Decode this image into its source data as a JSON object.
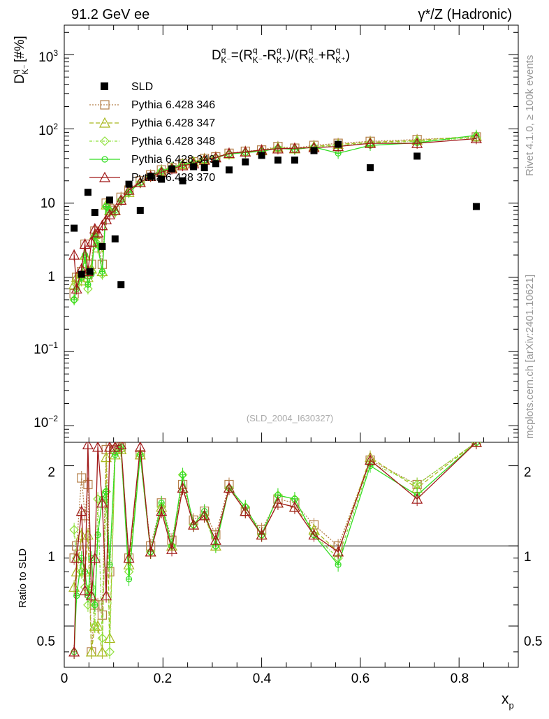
{
  "chart_data": {
    "type": "scatter",
    "title_left": "91.2 GeV ee",
    "title_right": "γ*/Z (Hadronic)",
    "formula": {
      "lhs": "D",
      "lhs_sup": "q",
      "lhs_sub": "K⁻",
      "eq": "=(R",
      "r_sup": "q",
      "r1_sub": "K⁻",
      "minus": "-R",
      "r2_sub": "K⁺",
      "mid": ")/(R",
      "plus": "+R",
      "close": ")"
    },
    "ylabel": {
      "main": "D",
      "sup": "q",
      "sub": "K⁻",
      "unit": "[#%]"
    },
    "xlabel": {
      "main": "x",
      "sub": "p"
    },
    "ratio_ylabel": "Ratio to SLD",
    "side_label_top": "Rivet 4.1.0, ≥ 100k events",
    "side_label_bottom": "mcplots.cern.ch [arXiv:2401.10621]",
    "watermark": "(SLD_2004_I630327)",
    "xlim": [
      0,
      0.92
    ],
    "ylim_main_log": [
      0.006,
      2500
    ],
    "ylim_ratio_log": [
      0.35,
      2.45
    ],
    "x_ticks": [
      "0",
      "0.2",
      "0.4",
      "0.6",
      "0.8"
    ],
    "main_tick_labels": {
      "t10": "10",
      "t1": "1",
      "base": "10"
    },
    "ratio_ticks": [
      "0.5",
      "1",
      "2"
    ],
    "legend": {
      "data": "SLD",
      "mc": [
        "Pythia 6.428 346",
        "Pythia 6.428 347",
        "Pythia 6.428 348",
        "Pythia 6.428 349",
        "Pythia 6.428 370"
      ]
    },
    "sld": {
      "x": [
        0.02,
        0.035,
        0.048,
        0.052,
        0.062,
        0.077,
        0.092,
        0.103,
        0.115,
        0.131,
        0.154,
        0.175,
        0.197,
        0.218,
        0.24,
        0.262,
        0.284,
        0.307,
        0.334,
        0.367,
        0.4,
        0.433,
        0.467,
        0.506,
        0.555,
        0.62,
        0.715,
        0.835
      ],
      "y": [
        4.6,
        1.1,
        14,
        1.2,
        7.5,
        2.6,
        11,
        3.3,
        0.8,
        18,
        8,
        23,
        21,
        29,
        20,
        31,
        30,
        34,
        28,
        36,
        44,
        38,
        38,
        51,
        62,
        30,
        43,
        9
      ]
    },
    "mc_x": [
      0.02,
      0.025,
      0.035,
      0.042,
      0.048,
      0.055,
      0.062,
      0.068,
      0.077,
      0.085,
      0.092,
      0.103,
      0.115,
      0.131,
      0.154,
      0.175,
      0.197,
      0.218,
      0.24,
      0.262,
      0.284,
      0.307,
      0.334,
      0.367,
      0.4,
      0.433,
      0.467,
      0.506,
      0.555,
      0.62,
      0.715,
      0.835
    ],
    "series": [
      {
        "name": "Pythia 6.428 346",
        "color": "#b5804a",
        "dash": "2,2",
        "marker": "square",
        "ratio_dash": "2,2",
        "y": [
          0.6,
          1.0,
          1.2,
          2.8,
          1.1,
          1.5,
          4.2,
          3.0,
          1.5,
          10,
          8.5,
          8,
          12,
          15,
          20,
          24,
          28,
          30,
          34,
          36,
          40,
          42,
          47,
          50,
          52,
          58,
          55,
          60,
          64,
          68,
          72,
          78
        ],
        "ratio": [
          0.9,
          1.0,
          1.8,
          1.3,
          1.7,
          0.4,
          0.6,
          0.6,
          0.55,
          2.3,
          0.8,
          2.3,
          2.35,
          0.9,
          2.2,
          1.0,
          1.45,
          1.05,
          1.7,
          1.25,
          1.35,
          1.1,
          1.7,
          1.35,
          1.15,
          1.5,
          1.45,
          1.2,
          1.0,
          2.1,
          1.7,
          2.45
        ]
      },
      {
        "name": "Pythia 6.428 347",
        "color": "#a8b81e",
        "dash": "6,3",
        "marker": "triangle",
        "ratio_dash": "6,3",
        "y": [
          0.8,
          1.0,
          0.9,
          2.0,
          1.0,
          1.3,
          3.8,
          2.5,
          1.2,
          9.5,
          8,
          8,
          11,
          14,
          19,
          23,
          27,
          30,
          33,
          36,
          39,
          41,
          46,
          49,
          51,
          56,
          54,
          58,
          62,
          66,
          70,
          80
        ],
        "ratio": [
          0.7,
          0.8,
          1.1,
          0.8,
          1.1,
          0.4,
          0.5,
          0.5,
          0.4,
          2.15,
          0.45,
          2.2,
          2.3,
          0.85,
          2.2,
          0.95,
          1.4,
          1.0,
          1.65,
          1.2,
          1.3,
          1.0,
          1.65,
          1.35,
          1.1,
          1.45,
          1.4,
          1.15,
          0.95,
          2.15,
          1.65,
          2.45
        ]
      },
      {
        "name": "Pythia 6.428 348",
        "color": "#8ee03a",
        "dash": "4,2,1,2",
        "marker": "diamond",
        "ratio_dash": "4,2,1,2",
        "y": [
          0.5,
          0.8,
          1.0,
          1.8,
          0.7,
          1.2,
          3.5,
          2.8,
          1.1,
          9,
          7.5,
          7.5,
          11,
          14,
          19,
          23,
          27,
          30,
          33,
          35,
          38,
          41,
          46,
          48,
          50,
          55,
          53,
          57,
          60,
          65,
          68,
          76
        ],
        "ratio": [
          1.15,
          0.9,
          0.8,
          0.7,
          0.6,
          0.7,
          0.5,
          1.5,
          0.45,
          1.6,
          0.4,
          2.25,
          2.3,
          0.8,
          2.2,
          0.95,
          1.4,
          1.0,
          1.85,
          1.2,
          1.3,
          1.0,
          1.65,
          1.4,
          1.1,
          1.55,
          1.5,
          1.1,
          0.9,
          2.05,
          1.7,
          2.45
        ]
      },
      {
        "name": "Pythia 6.428 349",
        "color": "#33dd22",
        "dash": "",
        "marker": "cross",
        "ratio_dash": "",
        "y": [
          0.5,
          0.7,
          1.0,
          2.0,
          0.8,
          1.1,
          3.6,
          2.7,
          1.2,
          9,
          8,
          8,
          11,
          14,
          19,
          23,
          27,
          30,
          33,
          35,
          38,
          41,
          46,
          48,
          50,
          55,
          53,
          57,
          47,
          60,
          65,
          82
        ],
        "ratio": [
          0.4,
          0.65,
          0.9,
          0.8,
          0.65,
          0.9,
          0.6,
          1.1,
          1.5,
          1.6,
          0.85,
          2.2,
          2.35,
          0.75,
          2.2,
          0.95,
          1.45,
          1.0,
          1.85,
          1.2,
          1.35,
          1.0,
          1.65,
          1.4,
          1.1,
          1.55,
          1.5,
          1.1,
          0.85,
          2.0,
          1.55,
          2.45
        ]
      },
      {
        "name": "Pythia 6.428 370",
        "color": "#a01818",
        "dash": "",
        "marker": "triangle",
        "ratio_dash": "",
        "y": [
          2.0,
          0.7,
          1.3,
          2.8,
          1.2,
          3.0,
          4.5,
          4.0,
          5.0,
          6.0,
          7,
          8,
          11,
          15,
          19,
          23,
          26,
          29,
          32,
          34,
          38,
          41,
          47,
          49,
          52,
          54,
          55,
          56,
          58,
          64,
          64,
          74
        ],
        "ratio": [
          0.4,
          0.9,
          1.35,
          0.68,
          2.4,
          0.65,
          0.9,
          2.35,
          1.45,
          0.65,
          2.35,
          2.35,
          2.4,
          0.9,
          2.35,
          0.95,
          1.35,
          0.97,
          1.65,
          1.2,
          1.3,
          1.05,
          1.65,
          1.35,
          1.1,
          1.45,
          1.4,
          1.1,
          0.95,
          2.1,
          1.5,
          2.45
        ]
      }
    ]
  }
}
